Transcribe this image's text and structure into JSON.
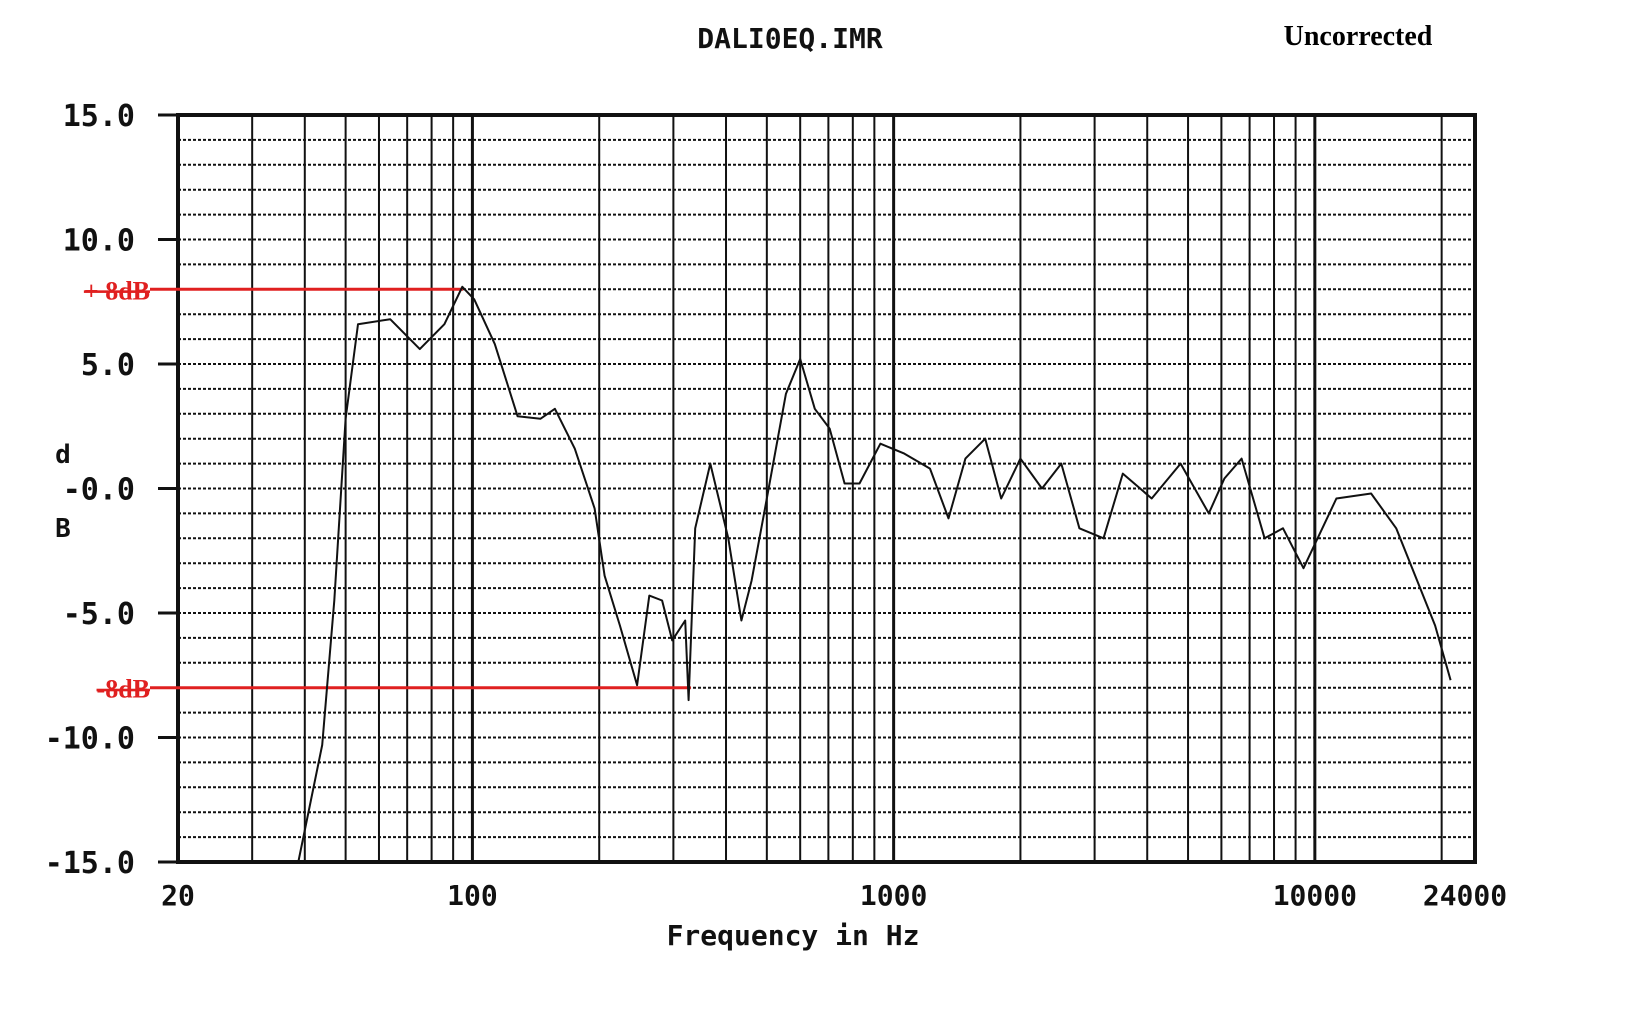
{
  "chart_data": {
    "type": "line",
    "title": "DALI0EQ.IMR",
    "annotation": "Uncorrected",
    "xlabel": "Frequency in Hz",
    "ylabel": "dB",
    "ylabel_top": "d",
    "ylabel_bottom": "B",
    "xscale": "log",
    "xlim": [
      20,
      24000
    ],
    "ylim": [
      -15,
      15
    ],
    "grid": true,
    "xticks": [
      {
        "value": 20,
        "label": "20"
      },
      {
        "value": 100,
        "label": "100"
      },
      {
        "value": 1000,
        "label": "1000"
      },
      {
        "value": 10000,
        "label": "10000"
      },
      {
        "value": 24000,
        "label": "24000"
      }
    ],
    "yticks": [
      {
        "value": 15,
        "label": "15.0"
      },
      {
        "value": 10,
        "label": "10.0"
      },
      {
        "value": 5,
        "label": "5.0"
      },
      {
        "value": 0,
        "label": "-0.0"
      },
      {
        "value": -5,
        "label": "-5.0"
      },
      {
        "value": -10,
        "label": "-10.0"
      },
      {
        "value": -15,
        "label": "-15.0"
      }
    ],
    "reference_lines": [
      {
        "label": "+ 8dB",
        "y": 8,
        "x_end": 95,
        "color": "#e02020"
      },
      {
        "label": "-8dB",
        "y": -8,
        "x_end": 330,
        "color": "#e02020"
      }
    ],
    "series": [
      {
        "color": "#111111",
        "x": [
          38.6,
          44,
          47,
          50,
          53.5,
          63.8,
          75,
          85.8,
          94.6,
          101,
          113,
          128,
          145,
          157,
          175,
          195,
          206,
          224,
          246,
          263,
          282,
          298,
          320,
          326,
          338,
          367,
          405,
          435,
          460,
          495,
          555,
          600,
          650,
          705,
          765,
          830,
          930,
          1060,
          1220,
          1350,
          1480,
          1650,
          1800,
          2000,
          2250,
          2500,
          2760,
          3150,
          3500,
          4100,
          4800,
          5600,
          6100,
          6700,
          7600,
          8400,
          9400,
          11250,
          13600,
          15600,
          19300,
          21000
        ],
        "y": [
          -15,
          -10.3,
          -4.5,
          2.8,
          6.6,
          6.8,
          5.6,
          6.6,
          8.1,
          7.6,
          5.8,
          2.9,
          2.8,
          3.2,
          1.6,
          -0.8,
          -3.5,
          -5.5,
          -7.9,
          -4.3,
          -4.5,
          -6.1,
          -5.3,
          -8.5,
          -1.6,
          1.0,
          -2.0,
          -5.3,
          -3.7,
          -0.8,
          3.8,
          5.2,
          3.2,
          2.4,
          0.2,
          0.2,
          1.8,
          1.4,
          0.8,
          -1.2,
          1.2,
          2.0,
          -0.4,
          1.2,
          0.0,
          1.0,
          -1.6,
          -2.0,
          0.6,
          -0.4,
          1.0,
          -1.0,
          0.4,
          1.2,
          -2.0,
          -1.6,
          -3.2,
          -0.4,
          -0.2,
          -1.6,
          -5.5,
          -7.7
        ]
      }
    ]
  }
}
